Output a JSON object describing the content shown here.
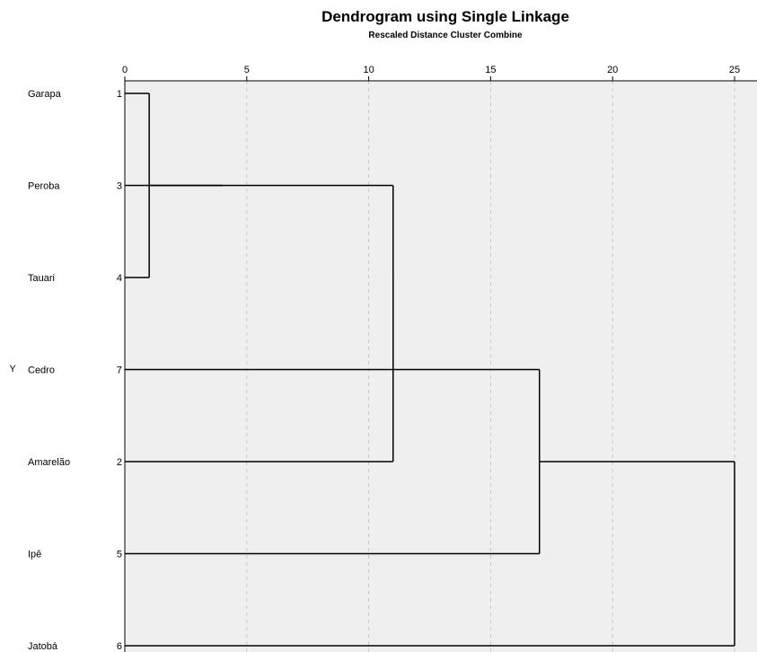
{
  "chart_data": {
    "type": "dendrogram",
    "title": "Dendrogram using Single Linkage",
    "subtitle": "Rescaled Distance Cluster Combine",
    "ylabel": "Y",
    "xlim": [
      0,
      26
    ],
    "x_ticks": [
      0,
      5,
      10,
      15,
      20,
      25
    ],
    "grid": true,
    "background": "#efefef",
    "leaves": [
      {
        "label": "Garapa",
        "case": "1"
      },
      {
        "label": "Peroba",
        "case": "3"
      },
      {
        "label": "Tauari",
        "case": "4"
      },
      {
        "label": "Cedro",
        "case": "7"
      },
      {
        "label": "Amarelão",
        "case": "2"
      },
      {
        "label": "Ipê",
        "case": "5"
      },
      {
        "label": "Jatobá",
        "case": "6"
      }
    ],
    "merges": [
      {
        "a": "Garapa",
        "b": "Tauari",
        "distance": 1
      },
      {
        "a": "Peroba",
        "b": "cluster1",
        "distance": 4
      },
      {
        "a": "Cedro",
        "b": "cluster2",
        "distance": 11
      },
      {
        "a": "Amarelão",
        "b": "cluster3",
        "distance": 11
      },
      {
        "a": "Ipê",
        "b": "cluster4",
        "distance": 17
      },
      {
        "a": "Jatobá",
        "b": "cluster5",
        "distance": 25
      }
    ]
  }
}
